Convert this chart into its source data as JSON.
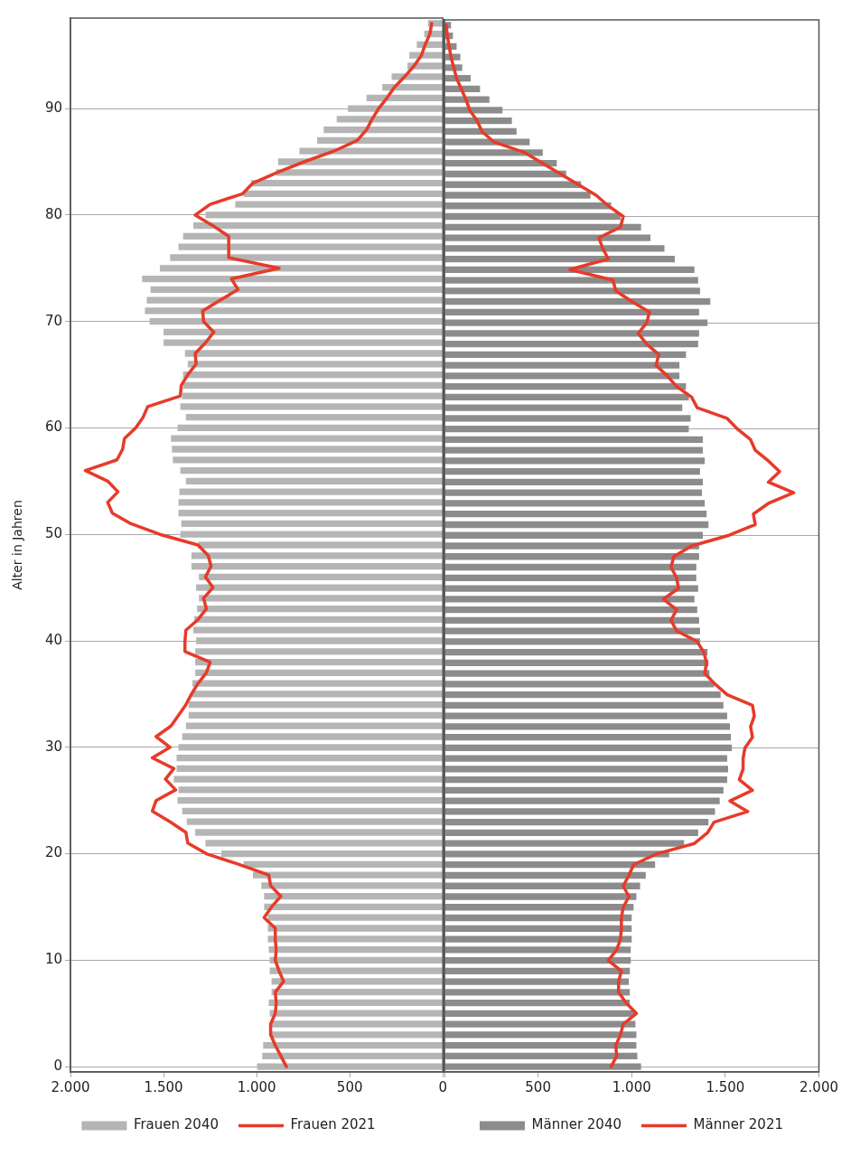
{
  "chart_data": [
    {
      "type": "bar",
      "orientation": "horizontal",
      "ylabel": "Alter in Jahren",
      "grid": "y",
      "legend": "bottom",
      "marker": "none",
      "categories": [
        null,
        null,
        null,
        null,
        null,
        null,
        null,
        null,
        "90",
        null,
        null,
        null,
        null,
        null,
        null,
        null,
        null,
        null,
        "80",
        null,
        null,
        null,
        null,
        null,
        null,
        null,
        null,
        null,
        "70",
        null,
        null,
        null,
        null,
        null,
        null,
        null,
        null,
        null,
        "60",
        null,
        null,
        null,
        null,
        null,
        null,
        null,
        null,
        null,
        "50",
        null,
        null,
        null,
        null,
        null,
        null,
        null,
        null,
        null,
        "40",
        null,
        null,
        null,
        null,
        null,
        null,
        null,
        null,
        null,
        "30",
        null,
        null,
        null,
        null,
        null,
        null,
        null,
        null,
        null,
        "20",
        null,
        null,
        null,
        null,
        null,
        null,
        null,
        null,
        null,
        "10",
        null,
        null,
        null,
        null,
        null,
        null,
        null,
        null,
        null,
        "0"
      ],
      "xlim": [
        2000,
        0
      ],
      "xticks": [
        {
          "value": 2000,
          "label": "2.000"
        },
        {
          "value": 1500,
          "label": "1.500"
        },
        {
          "value": 1000,
          "label": "1.000"
        },
        {
          "value": 500,
          "label": "500"
        },
        {
          "value": 0,
          "label": "0"
        }
      ],
      "series": [
        {
          "name": "Frauen 2040",
          "color": "#b5b5b5",
          "values": [
            80,
            100,
            140,
            180,
            190,
            275,
            325,
            410,
            510,
            570,
            640,
            675,
            770,
            885,
            895,
            1030,
            1070,
            1115,
            1275,
            1340,
            1395,
            1420,
            1465,
            1520,
            1615,
            1570,
            1590,
            1600,
            1575,
            1500,
            1500,
            1385,
            1370,
            1395,
            1395,
            1400,
            1410,
            1380,
            1425,
            1460,
            1455,
            1450,
            1410,
            1380,
            1415,
            1420,
            1420,
            1405,
            1410,
            1315,
            1350,
            1350,
            1310,
            1325,
            1310,
            1320,
            1335,
            1340,
            1325,
            1330,
            1330,
            1330,
            1345,
            1350,
            1365,
            1365,
            1380,
            1400,
            1420,
            1430,
            1430,
            1445,
            1420,
            1425,
            1400,
            1375,
            1330,
            1275,
            1190,
            1070,
            1020,
            975,
            960,
            960,
            940,
            940,
            940,
            935,
            930,
            930,
            920,
            920,
            935,
            930,
            920,
            920,
            965,
            970,
            998
          ]
        },
        {
          "name": "Frauen 2021",
          "type": "line",
          "color": "#e63b2a",
          "values": [
            60,
            70,
            95,
            115,
            155,
            205,
            260,
            300,
            345,
            380,
            410,
            460,
            585,
            745,
            890,
            1020,
            1075,
            1250,
            1330,
            1235,
            1150,
            1150,
            1150,
            880,
            1135,
            1100,
            1195,
            1290,
            1285,
            1230,
            1275,
            1330,
            1325,
            1370,
            1405,
            1410,
            1585,
            1610,
            1650,
            1710,
            1720,
            1750,
            1920,
            1800,
            1745,
            1800,
            1775,
            1675,
            1520,
            1315,
            1260,
            1245,
            1275,
            1235,
            1285,
            1270,
            1315,
            1380,
            1385,
            1385,
            1250,
            1270,
            1315,
            1350,
            1380,
            1420,
            1460,
            1540,
            1465,
            1560,
            1445,
            1490,
            1435,
            1540,
            1560,
            1465,
            1380,
            1370,
            1270,
            1095,
            935,
            925,
            870,
            920,
            960,
            900,
            900,
            895,
            900,
            880,
            855,
            900,
            895,
            900,
            925,
            925,
            900,
            870,
            840
          ]
        }
      ]
    },
    {
      "type": "bar",
      "orientation": "horizontal",
      "grid": "y",
      "legend": "bottom",
      "marker": "none",
      "tick_labels": "x",
      "categories": [
        null,
        null,
        null,
        null,
        null,
        null,
        null,
        null,
        "90",
        null,
        null,
        null,
        null,
        null,
        null,
        null,
        null,
        null,
        "80",
        null,
        null,
        null,
        null,
        null,
        null,
        null,
        null,
        null,
        "70",
        null,
        null,
        null,
        null,
        null,
        null,
        null,
        null,
        null,
        "60",
        null,
        null,
        null,
        null,
        null,
        null,
        null,
        null,
        null,
        "50",
        null,
        null,
        null,
        null,
        null,
        null,
        null,
        null,
        null,
        "40",
        null,
        null,
        null,
        null,
        null,
        null,
        null,
        null,
        null,
        "30",
        null,
        null,
        null,
        null,
        null,
        null,
        null,
        null,
        null,
        "20",
        null,
        null,
        null,
        null,
        null,
        null,
        null,
        null,
        null,
        "10",
        null,
        null,
        null,
        null,
        null,
        null,
        null,
        null,
        null,
        "0"
      ],
      "xlim": [
        0,
        2000
      ],
      "xticks": [
        {
          "value": 0,
          "label": null
        },
        {
          "value": 500,
          "label": "500"
        },
        {
          "value": 1000,
          "label": "1.000"
        },
        {
          "value": 1500,
          "label": "1.500"
        },
        {
          "value": 2000,
          "label": "2.000"
        }
      ],
      "series": [
        {
          "name": "Männer 2040",
          "color": "#8c8c8c",
          "values": [
            35,
            45,
            65,
            85,
            95,
            140,
            190,
            240,
            310,
            360,
            385,
            455,
            525,
            600,
            650,
            730,
            780,
            890,
            940,
            1050,
            1100,
            1175,
            1230,
            1335,
            1355,
            1365,
            1420,
            1360,
            1405,
            1360,
            1355,
            1290,
            1255,
            1255,
            1290,
            1305,
            1270,
            1315,
            1305,
            1380,
            1380,
            1390,
            1365,
            1380,
            1375,
            1390,
            1400,
            1410,
            1380,
            1360,
            1360,
            1345,
            1345,
            1355,
            1335,
            1350,
            1360,
            1365,
            1365,
            1405,
            1410,
            1415,
            1440,
            1475,
            1490,
            1510,
            1525,
            1530,
            1535,
            1510,
            1515,
            1510,
            1490,
            1470,
            1445,
            1410,
            1355,
            1280,
            1200,
            1125,
            1075,
            1045,
            1025,
            1010,
            1000,
            1000,
            1000,
            995,
            995,
            990,
            985,
            990,
            990,
            1015,
            1020,
            1025,
            1025,
            1030,
            1050
          ]
        },
        {
          "name": "Männer 2021",
          "type": "line",
          "color": "#e63b2a",
          "values": [
            10,
            15,
            25,
            35,
            50,
            65,
            90,
            115,
            135,
            175,
            200,
            265,
            430,
            525,
            620,
            715,
            810,
            875,
            955,
            940,
            825,
            845,
            875,
            670,
            900,
            915,
            1000,
            1095,
            1080,
            1035,
            1080,
            1145,
            1130,
            1190,
            1240,
            1320,
            1350,
            1510,
            1565,
            1635,
            1660,
            1730,
            1790,
            1730,
            1865,
            1730,
            1650,
            1660,
            1520,
            1320,
            1225,
            1210,
            1240,
            1250,
            1170,
            1240,
            1210,
            1240,
            1350,
            1385,
            1400,
            1390,
            1445,
            1510,
            1645,
            1655,
            1635,
            1645,
            1605,
            1595,
            1595,
            1575,
            1645,
            1525,
            1620,
            1440,
            1405,
            1335,
            1130,
            1010,
            985,
            955,
            985,
            955,
            945,
            945,
            940,
            920,
            875,
            945,
            930,
            930,
            970,
            1025,
            955,
            940,
            915,
            920,
            890
          ]
        }
      ]
    }
  ]
}
